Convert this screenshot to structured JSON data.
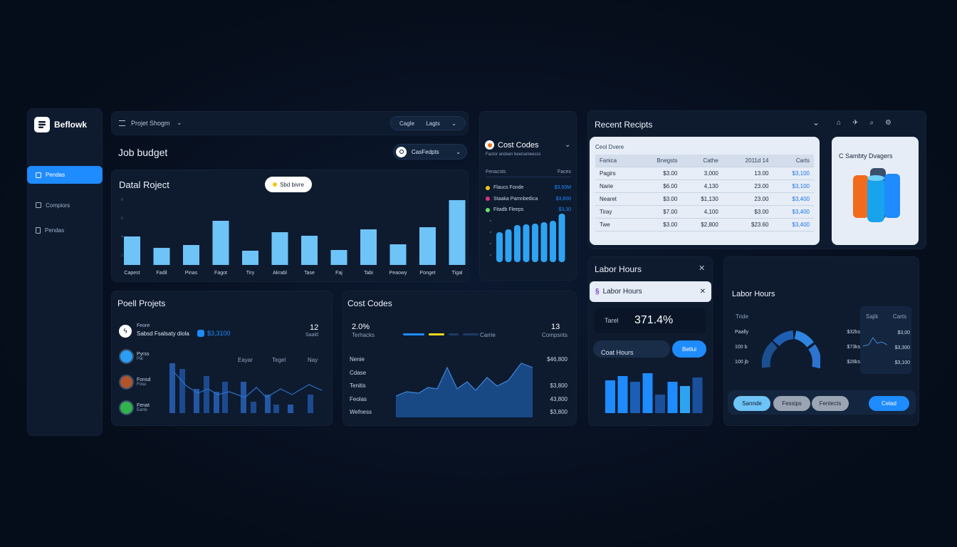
{
  "sidebar": {
    "logo_text": "Beflowk",
    "items": [
      {
        "label": "Pendas",
        "icon": "dashboard-icon",
        "active": true
      },
      {
        "label": "Compiors",
        "icon": "home-icon",
        "active": false
      },
      {
        "label": "Pendas",
        "icon": "document-icon",
        "active": false
      }
    ]
  },
  "topbar": {
    "menu_label": "Projet Shogm",
    "pill_left": "Cagle",
    "pill_right": "Lagts"
  },
  "job_budget": {
    "title": "Job budget",
    "select_label": "CasFedpts"
  },
  "detail_project": {
    "title": "Datal Roject",
    "badge": "Sbd bivre",
    "categories": [
      "Capest",
      "Fadil",
      "Pinas",
      "Fagot",
      "Tiry",
      "Akrabl",
      "Tase",
      "Faj",
      "Tabi",
      "Peaowy",
      "Ponget",
      "Tigal"
    ]
  },
  "cost_codes_card": {
    "title": "Cost Codes",
    "subtitle": "Factor andsen beenameesss",
    "col_left": "Fenacsts",
    "col_right": "Faces",
    "items": [
      {
        "label": "Flaucs Fonde",
        "value": "$3,50M",
        "color": "#f5c518"
      },
      {
        "label": "Staaka Pamnbetlica",
        "value": "$3,800",
        "color": "#e0308a"
      },
      {
        "label": "Fitadb Fleeps",
        "value": "$3,30",
        "color": "#6be36b"
      }
    ]
  },
  "recent_receipts": {
    "title": "Recent Recipts",
    "table_caption": "Ceol Dvere",
    "headers": [
      "Fanica",
      "Bnegsts",
      "Cathe",
      "2011d 14",
      "Carts"
    ],
    "rows": [
      [
        "Pagirs",
        "$3.00",
        "3,000",
        "13.00",
        "$3,100"
      ],
      [
        "Narie",
        "$6.00",
        "4,130",
        "23.00",
        "$3,100"
      ],
      [
        "Nearet",
        "$3.00",
        "$1,130",
        "23.00",
        "$3,400"
      ],
      [
        "Tiray",
        "$7.00",
        "4,100",
        "$3.00",
        "$3,400"
      ],
      [
        "Twe",
        "$3.00",
        "$2,800",
        "$23.60",
        "$3,400"
      ]
    ]
  },
  "storage_card": {
    "title": "C Sambty Dvagers"
  },
  "pool_projects": {
    "title": "Poell Projets",
    "stat_name": "Feore",
    "stat_sub": "Sabsd Fsalsaty diola",
    "stat_value": "$3,3100",
    "stat_count": "12",
    "stat_count_label": "Saald",
    "col_a": "Eayar",
    "col_b": "Tegel",
    "col_c": "Nay",
    "people": [
      {
        "name": "Pyrss",
        "role": "Pal"
      },
      {
        "name": "Fonsd",
        "role": "Fosu"
      },
      {
        "name": "Fenat",
        "role": "Eanls"
      }
    ]
  },
  "cost_codes_panel": {
    "title": "Cost Codes",
    "pct": "2.0%",
    "pct_label": "Terhacks",
    "mid_label": "Carrie",
    "count": "13",
    "count_label": "Compsnts",
    "rows": [
      {
        "label": "Nenie",
        "value": "$46,800"
      },
      {
        "label": "Cdase",
        "value": ""
      },
      {
        "label": "Tenitis",
        "value": "$3,800"
      },
      {
        "label": "Feolas",
        "value": "43,800"
      },
      {
        "label": "Wefness",
        "value": "$3,800"
      }
    ]
  },
  "labor_hours_a": {
    "title": "Labor Hours",
    "tab": "Labor Hours",
    "total_label": "Tarel",
    "total_value": "371.4%",
    "input_label": "Coat Hours",
    "button": "Betlui"
  },
  "labor_hours_b": {
    "title": "Labor Hours",
    "list_header": "Tride",
    "left_rows": [
      {
        "label": "Paally",
        "value": "$32ks"
      },
      {
        "label": "100 b",
        "value": "$73ks"
      },
      {
        "label": "100 jb",
        "value": "$28ks"
      }
    ],
    "right_header_a": "Sajik",
    "right_header_b": "Carts",
    "right_rows": [
      "$3,00",
      "$3,300",
      "$3,100"
    ],
    "buttons": [
      "Sannde",
      "Fessips",
      "Fentects"
    ],
    "primary_button": "Celad"
  },
  "colors": {
    "accent": "#1e8bff",
    "bar_light": "#6ec3f7",
    "bar_mid": "#2c6fcf",
    "bar_dark": "#1a4f9c"
  }
}
